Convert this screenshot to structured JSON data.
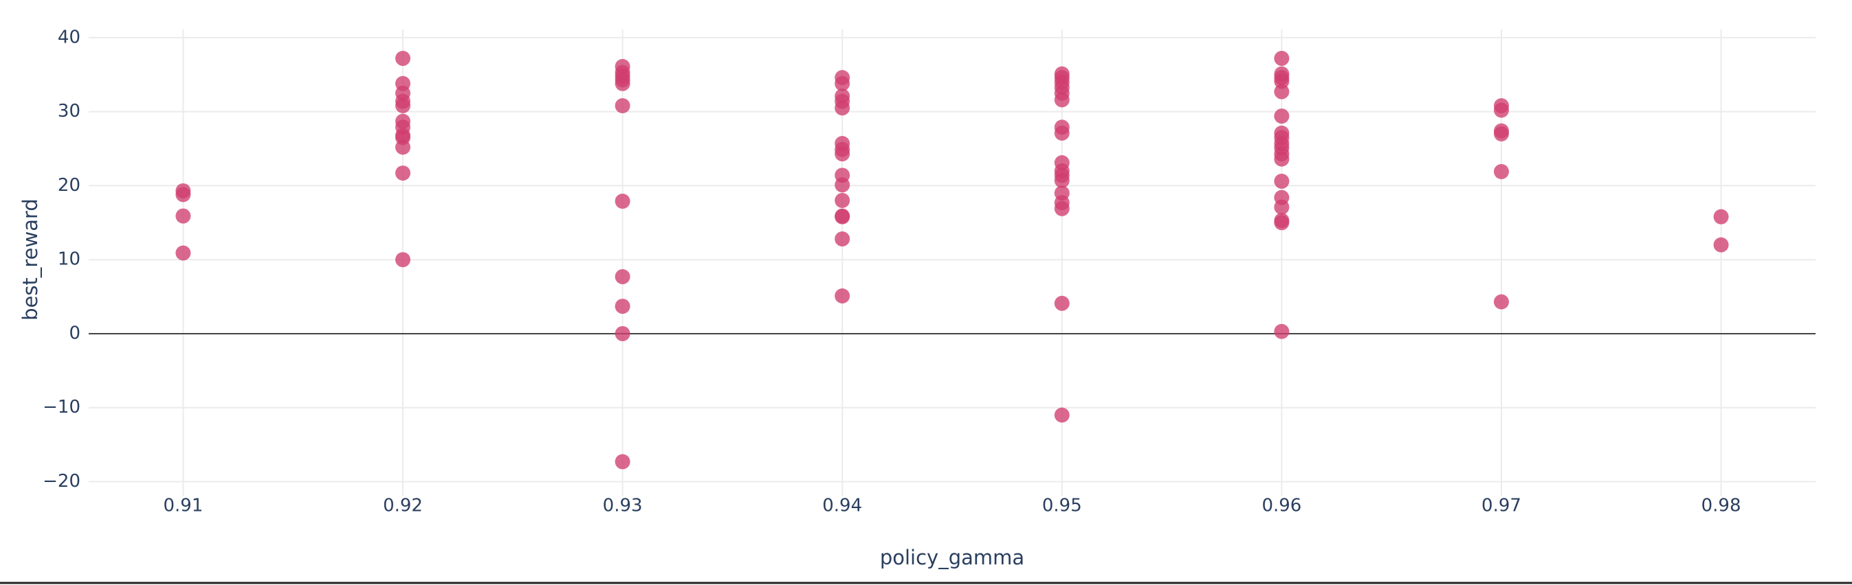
{
  "chart_data": {
    "type": "scatter",
    "x_label": "policy_gamma",
    "y_label": "best_reward",
    "color": "#cf3d6e",
    "opacity": 0.78,
    "grid": true,
    "zeroline": true,
    "xlim": [
      0.9057,
      0.9843
    ],
    "ylim": [
      -21.9,
      41.1
    ],
    "xticks": [
      0.91,
      0.92,
      0.93,
      0.94,
      0.95,
      0.96,
      0.97,
      0.98
    ],
    "yticks": [
      {
        "value": -20,
        "label": "−20"
      },
      {
        "value": -10,
        "label": "−10"
      },
      0,
      10,
      20,
      30,
      40
    ],
    "x": [
      0.91,
      0.91,
      0.91,
      0.91,
      0.92,
      0.92,
      0.92,
      0.92,
      0.92,
      0.92,
      0.92,
      0.92,
      0.92,
      0.92,
      0.92,
      0.92,
      0.93,
      0.93,
      0.93,
      0.93,
      0.93,
      0.93,
      0.93,
      0.93,
      0.93,
      0.93,
      0.93,
      0.94,
      0.94,
      0.94,
      0.94,
      0.94,
      0.94,
      0.94,
      0.94,
      0.94,
      0.94,
      0.94,
      0.94,
      0.94,
      0.94,
      0.94,
      0.95,
      0.95,
      0.95,
      0.95,
      0.95,
      0.95,
      0.95,
      0.95,
      0.95,
      0.95,
      0.95,
      0.95,
      0.95,
      0.95,
      0.95,
      0.95,
      0.95,
      0.96,
      0.96,
      0.96,
      0.96,
      0.96,
      0.96,
      0.96,
      0.96,
      0.96,
      0.96,
      0.96,
      0.96,
      0.96,
      0.96,
      0.96,
      0.96,
      0.96,
      0.96,
      0.97,
      0.97,
      0.97,
      0.97,
      0.97,
      0.97,
      0.98,
      0.98
    ],
    "y": [
      19.3,
      18.8,
      15.9,
      10.9,
      37.2,
      33.8,
      32.5,
      31.4,
      30.8,
      28.7,
      27.9,
      26.8,
      26.5,
      25.2,
      21.7,
      10,
      36.1,
      35.3,
      34.8,
      34.3,
      33.8,
      30.8,
      17.9,
      7.7,
      3.7,
      0,
      -17.3,
      34.6,
      33.8,
      32.1,
      31.4,
      30.5,
      25.7,
      24.9,
      24.3,
      21.4,
      20.1,
      18,
      15.8,
      15.9,
      12.8,
      5.1,
      35.1,
      34.6,
      34,
      33.3,
      32.5,
      31.6,
      27.9,
      27.1,
      23.1,
      22,
      21.4,
      20.7,
      19,
      17.7,
      16.9,
      4.1,
      -11,
      37.2,
      35.1,
      34.6,
      34.1,
      32.7,
      29.4,
      27.1,
      26.5,
      25.7,
      25.1,
      24.3,
      23.6,
      20.6,
      18.4,
      17.1,
      15.3,
      15,
      0.3,
      30.8,
      30.2,
      27.4,
      27,
      21.9,
      4.3,
      15.8,
      12
    ]
  }
}
